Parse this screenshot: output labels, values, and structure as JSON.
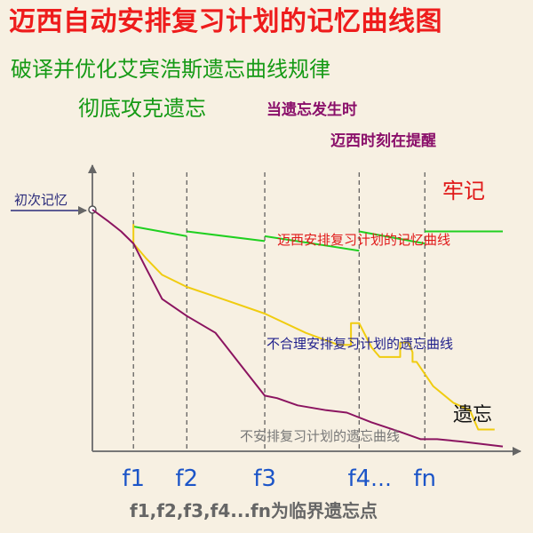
{
  "header": {
    "title": "迈西自动安排复习计划的记忆曲线图",
    "subtitle_line1": "破译并优化艾宾浩斯遗忘曲线规律",
    "subtitle_line2": "彻底攻克遗忘",
    "note_line1": "当遗忘发生时",
    "note_line2": "迈西时刻在提醒"
  },
  "chart_data": {
    "type": "line",
    "ylabel": "初次记忆",
    "xlim": [
      0,
      100
    ],
    "ylim": [
      0,
      100
    ],
    "grid": false,
    "x_ticks": [
      {
        "label": "f1",
        "x": 10
      },
      {
        "label": "f2",
        "x": 23
      },
      {
        "label": "f3",
        "x": 42
      },
      {
        "label": "f4",
        "x": 65
      },
      {
        "label": "fn",
        "x": 81
      }
    ],
    "tick_ellipsis": "…",
    "footer_note": "f1,f2,f3,f4...fn为临界遗忘点",
    "annotations": {
      "strong_memory": "牢记",
      "forgetting": "遗忘"
    },
    "series": [
      {
        "name": "迈西安排复习计划的记忆曲线",
        "color": "#20d020",
        "segments": [
          {
            "x": [
              10,
              23
            ],
            "y": [
              93,
              89
            ]
          },
          {
            "x": [
              23,
              42
            ],
            "y": [
              91,
              87
            ]
          },
          {
            "x": [
              42,
              65
            ],
            "y": [
              89,
              83
            ]
          },
          {
            "x": [
              65,
              81
            ],
            "y": [
              91,
              86
            ]
          },
          {
            "x": [
              81,
              100
            ],
            "y": [
              91,
              91
            ]
          }
        ]
      },
      {
        "name": "不合理安排复习计划的遗忘曲线",
        "color": "#f0cc10",
        "segments": [
          {
            "x": [
              10,
              10,
              13,
              17,
              23,
              30,
              42,
              52,
              60,
              63,
              63,
              65,
              68,
              70,
              75,
              75,
              77,
              78,
              78,
              79,
              83,
              88,
              92,
              94,
              98
            ],
            "y": [
              94,
              86,
              80,
              73,
              68,
              64,
              57,
              49,
              44,
              44,
              53,
              53,
              43,
              39,
              39,
              45,
              45,
              41,
              37,
              37,
              27,
              20,
              17,
              9,
              9
            ]
          }
        ]
      },
      {
        "name": "不安排复习计划的遗忘曲线",
        "color": "#8b1460",
        "segments": [
          {
            "x": [
              0,
              4,
              7,
              10,
              13,
              17,
              23,
              30,
              36,
              42,
              45,
              50,
              57,
              62,
              68,
              75,
              80,
              84,
              90,
              100
            ],
            "y": [
              100,
              95,
              91,
              86,
              76,
              63,
              56,
              49,
              36,
              23,
              22,
              19,
              17,
              16,
              12,
              8,
              5,
              5,
              4,
              2
            ]
          }
        ]
      }
    ]
  }
}
